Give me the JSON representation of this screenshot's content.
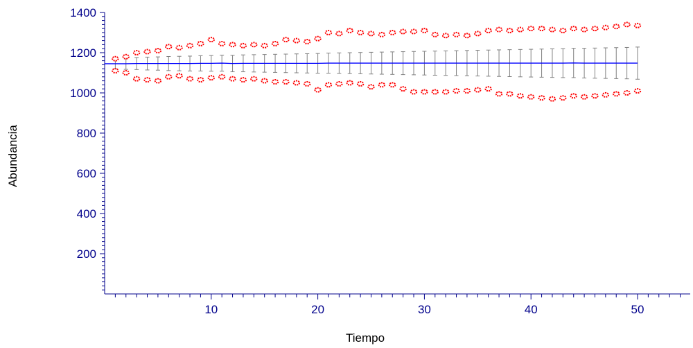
{
  "chart_data": {
    "type": "line",
    "title": "",
    "xlabel": "Tiempo",
    "ylabel": "Abundancia",
    "xlim": [
      0,
      55
    ],
    "ylim": [
      0,
      1400
    ],
    "xticks": [
      10,
      20,
      30,
      40,
      50
    ],
    "yticks": [
      200,
      400,
      600,
      800,
      1000,
      1200,
      1400
    ],
    "grid": false,
    "legend": "none",
    "colors": {
      "axis": "#00008b",
      "mean": "#0000ff",
      "error_bar": "#808080",
      "extremes": "#ff0000",
      "background": "#ffffff"
    },
    "x": [
      0,
      1,
      2,
      3,
      4,
      5,
      6,
      7,
      8,
      9,
      10,
      11,
      12,
      13,
      14,
      15,
      16,
      17,
      18,
      19,
      20,
      21,
      22,
      23,
      24,
      25,
      26,
      27,
      28,
      29,
      30,
      31,
      32,
      33,
      34,
      35,
      36,
      37,
      38,
      39,
      40,
      41,
      42,
      43,
      44,
      45,
      46,
      47,
      48,
      49,
      50
    ],
    "mean": [
      1145,
      1145,
      1145,
      1146,
      1146,
      1146,
      1146,
      1146,
      1146,
      1147,
      1147,
      1148,
      1146,
      1147,
      1147,
      1147,
      1147,
      1147,
      1147,
      1147,
      1147,
      1148,
      1148,
      1148,
      1148,
      1148,
      1148,
      1148,
      1148,
      1148,
      1148,
      1148,
      1148,
      1148,
      1148,
      1148,
      1148,
      1148,
      1148,
      1148,
      1148,
      1148,
      1148,
      1148,
      1149,
      1148,
      1148,
      1148,
      1148,
      1148,
      1148
    ],
    "err_half": [
      0,
      25,
      28,
      30,
      32,
      33,
      35,
      36,
      37,
      38,
      39,
      40,
      41,
      42,
      43,
      44,
      45,
      46,
      47,
      48,
      49,
      50,
      51,
      52,
      53,
      54,
      55,
      56,
      57,
      58,
      59,
      60,
      61,
      62,
      63,
      64,
      65,
      66,
      67,
      68,
      69,
      70,
      71,
      72,
      73,
      74,
      75,
      76,
      77,
      78,
      80
    ],
    "max": [
      1150,
      1170,
      1180,
      1200,
      1205,
      1210,
      1230,
      1225,
      1235,
      1245,
      1265,
      1245,
      1240,
      1235,
      1240,
      1235,
      1245,
      1265,
      1260,
      1255,
      1270,
      1300,
      1295,
      1310,
      1300,
      1295,
      1290,
      1300,
      1305,
      1305,
      1310,
      1290,
      1285,
      1290,
      1285,
      1295,
      1310,
      1315,
      1310,
      1315,
      1320,
      1320,
      1315,
      1310,
      1320,
      1315,
      1320,
      1325,
      1330,
      1340,
      1335
    ],
    "min": [
      1140,
      1110,
      1100,
      1070,
      1065,
      1060,
      1080,
      1085,
      1070,
      1065,
      1075,
      1080,
      1070,
      1065,
      1070,
      1060,
      1055,
      1055,
      1050,
      1045,
      1015,
      1040,
      1045,
      1050,
      1045,
      1030,
      1040,
      1040,
      1020,
      1005,
      1005,
      1005,
      1005,
      1010,
      1010,
      1015,
      1020,
      995,
      995,
      985,
      980,
      975,
      970,
      975,
      985,
      980,
      985,
      990,
      995,
      1000,
      1010
    ]
  }
}
